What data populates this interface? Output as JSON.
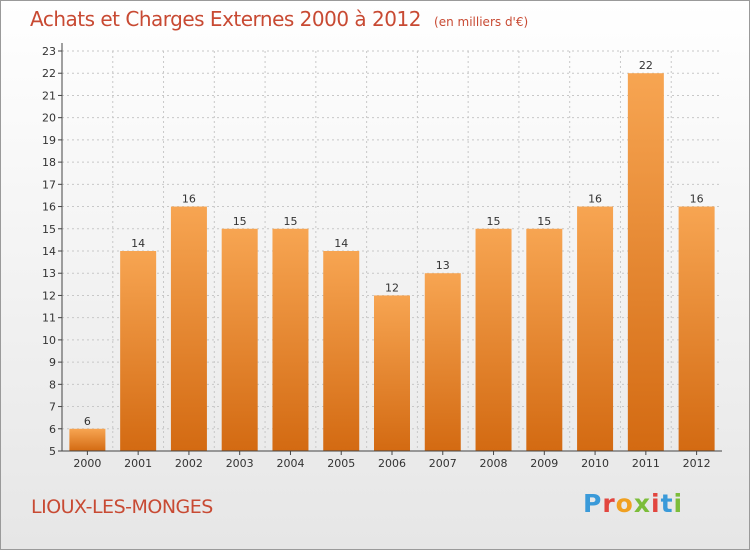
{
  "header": {
    "title": "Achats et Charges Externes 2000 à 2012",
    "subtitle": "(en milliers d'€)"
  },
  "footer": {
    "commune": "LIOUX-LES-MONGES",
    "brand": "Proxiti"
  },
  "chart_data": {
    "type": "bar",
    "title": "Achats et Charges Externes 2000 à 2012",
    "subtitle": "(en milliers d'€)",
    "xlabel": "",
    "ylabel": "",
    "categories": [
      "2000",
      "2001",
      "2002",
      "2003",
      "2004",
      "2005",
      "2006",
      "2007",
      "2008",
      "2009",
      "2010",
      "2011",
      "2012"
    ],
    "values": [
      6,
      14,
      16,
      15,
      15,
      14,
      12,
      13,
      15,
      15,
      16,
      22,
      16
    ],
    "ylim": [
      5,
      23
    ],
    "yticks": [
      5,
      6,
      7,
      8,
      9,
      10,
      11,
      12,
      13,
      14,
      15,
      16,
      17,
      18,
      19,
      20,
      21,
      22,
      23
    ],
    "grid": true,
    "colors": {
      "bar_top": "#f7a552",
      "bar_bottom": "#d36a12",
      "grid": "#c8c8c8",
      "axis": "#444444",
      "text": "#333333",
      "accent": "#c84a33"
    }
  }
}
